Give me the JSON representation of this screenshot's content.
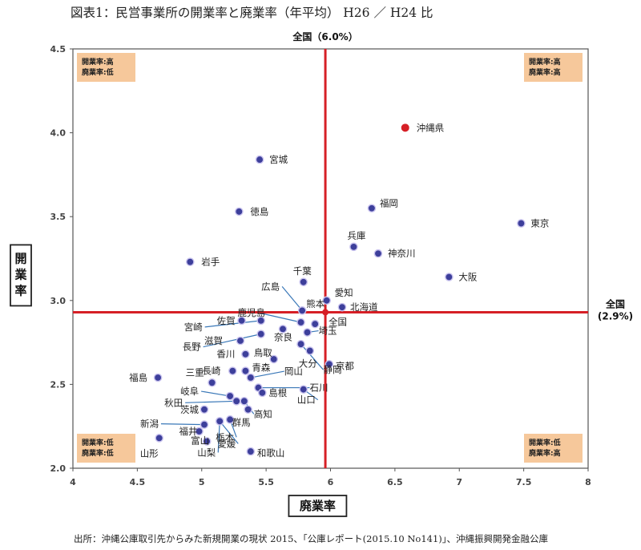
{
  "page": {
    "title": "図表1：民営事業所の開業率と廃業率（年平均） H26 ／ H24 比",
    "source": "出所：沖縄公庫取引先からみた新規開業の現状 2015、「公庫レポート(2015.10 No141)」、沖縄振興開発金融公庫"
  },
  "chart_data": {
    "type": "scatter",
    "xlabel": "廃業率",
    "ylabel": "開業率",
    "xlim": [
      4,
      8
    ],
    "ylim": [
      2.0,
      4.5
    ],
    "xticks": [
      "4",
      "4.5",
      "5",
      "5.5",
      "6",
      "6.5",
      "7",
      "7.5",
      "8"
    ],
    "yticks": [
      "2.0",
      "2.5",
      "3.0",
      "3.5",
      "4.0",
      "4.5"
    ],
    "grid": false,
    "reference_lines": {
      "x": 5.96,
      "x_label": "全国（6.0%）",
      "y": 2.93,
      "y_label": "全国\n(2.9%)",
      "intersection_label": "全国",
      "color": "#d61f26"
    },
    "quadrant_labels": {
      "top-left": "開業率:高\n廃業率:低",
      "top-right": "開業率:高\n廃業率:高",
      "bottom-left": "開業率:低\n廃業率:低",
      "bottom-right": "開業率:低\n廃業率:高"
    },
    "colors": {
      "point": "#3d3f9b",
      "point_outline": "#c9c3ee",
      "highlight": "#d61f26",
      "reference": "#d61f26",
      "quadrant_box": "#f6c89b"
    },
    "points": [
      {
        "name": "沖縄県",
        "x": 6.58,
        "y": 4.03,
        "highlight": true
      },
      {
        "name": "宮城",
        "x": 5.45,
        "y": 3.84
      },
      {
        "name": "福岡",
        "x": 6.32,
        "y": 3.55
      },
      {
        "name": "東京",
        "x": 7.48,
        "y": 3.46
      },
      {
        "name": "徳島",
        "x": 5.29,
        "y": 3.53
      },
      {
        "name": "兵庫",
        "x": 6.18,
        "y": 3.32
      },
      {
        "name": "神奈川",
        "x": 6.37,
        "y": 3.28
      },
      {
        "name": "岩手",
        "x": 4.91,
        "y": 3.23
      },
      {
        "name": "大阪",
        "x": 6.92,
        "y": 3.14
      },
      {
        "name": "千葉",
        "x": 5.79,
        "y": 3.11
      },
      {
        "name": "愛知",
        "x": 5.97,
        "y": 3.0
      },
      {
        "name": "北海道",
        "x": 6.09,
        "y": 2.96
      },
      {
        "name": "広島",
        "x": 5.78,
        "y": 2.94
      },
      {
        "name": "熊本",
        "x": 5.88,
        "y": 2.86
      },
      {
        "name": "鹿児島",
        "x": 5.77,
        "y": 2.87
      },
      {
        "name": "佐賀",
        "x": 5.31,
        "y": 2.88
      },
      {
        "name": "宮崎",
        "x": 5.46,
        "y": 2.88
      },
      {
        "name": "奈良",
        "x": 5.63,
        "y": 2.83
      },
      {
        "name": "埼玉",
        "x": 5.82,
        "y": 2.81
      },
      {
        "name": "滋賀",
        "x": 5.3,
        "y": 2.76
      },
      {
        "name": "静岡",
        "x": 5.77,
        "y": 2.74
      },
      {
        "name": "香川",
        "x": 5.34,
        "y": 2.68
      },
      {
        "name": "鳥取",
        "x": 5.56,
        "y": 2.65
      },
      {
        "name": "大分",
        "x": 5.84,
        "y": 2.7
      },
      {
        "name": "長野",
        "x": 5.46,
        "y": 2.8
      },
      {
        "name": "京都",
        "x": 5.99,
        "y": 2.62
      },
      {
        "name": "長崎",
        "x": 5.24,
        "y": 2.58
      },
      {
        "name": "青森",
        "x": 5.34,
        "y": 2.58
      },
      {
        "name": "岡山",
        "x": 5.38,
        "y": 2.54
      },
      {
        "name": "福島",
        "x": 4.66,
        "y": 2.54
      },
      {
        "name": "三重",
        "x": 5.08,
        "y": 2.51
      },
      {
        "name": "石川",
        "x": 5.44,
        "y": 2.48
      },
      {
        "name": "岐阜",
        "x": 5.22,
        "y": 2.43
      },
      {
        "name": "山口",
        "x": 5.79,
        "y": 2.47
      },
      {
        "name": "島根",
        "x": 5.47,
        "y": 2.45
      },
      {
        "name": "秋田",
        "x": 5.27,
        "y": 2.4
      },
      {
        "name": "高知",
        "x": 5.33,
        "y": 2.4
      },
      {
        "name": "茨城",
        "x": 5.02,
        "y": 2.35
      },
      {
        "name": "群馬",
        "x": 5.36,
        "y": 2.35
      },
      {
        "name": "新潟",
        "x": 5.02,
        "y": 2.26
      },
      {
        "name": "福井",
        "x": 4.98,
        "y": 2.22
      },
      {
        "name": "栃木",
        "x": 5.22,
        "y": 2.29
      },
      {
        "name": "愛媛",
        "x": 5.14,
        "y": 2.28
      },
      {
        "name": "富山",
        "x": 5.04,
        "y": 2.16
      },
      {
        "name": "山梨",
        "x": 5.14,
        "y": 2.28
      },
      {
        "name": "山形",
        "x": 4.67,
        "y": 2.18
      },
      {
        "name": "和歌山",
        "x": 5.38,
        "y": 2.1
      }
    ]
  }
}
